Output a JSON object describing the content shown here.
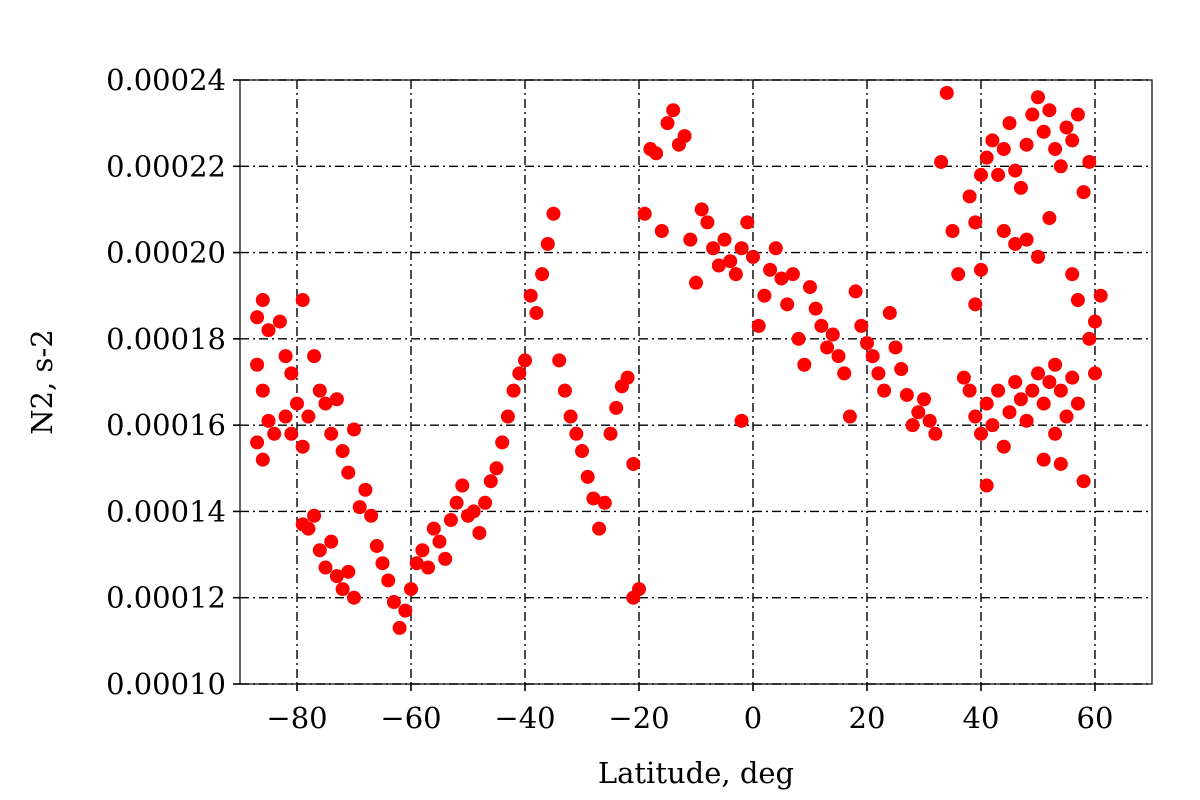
{
  "chart_data": {
    "type": "scatter",
    "title": "",
    "xlabel": "Latitude, deg",
    "ylabel": "N2, s-2",
    "xlim": [
      -90,
      70
    ],
    "ylim": [
      0.0001,
      0.00024
    ],
    "grid": true,
    "legend": "none",
    "color": "#ff0000",
    "x_ticks": [
      -80,
      -60,
      -40,
      -20,
      0,
      20,
      40,
      60
    ],
    "x_tick_labels": [
      "−80",
      "−60",
      "−40",
      "−20",
      "0",
      "20",
      "40",
      "60"
    ],
    "y_ticks": [
      0.0001,
      0.00012,
      0.00014,
      0.00016,
      0.00018,
      0.0002,
      0.00022,
      0.00024
    ],
    "y_tick_labels": [
      "0.00010",
      "0.00012",
      "0.00014",
      "0.00016",
      "0.00018",
      "0.00020",
      "0.00022",
      "0.00024"
    ],
    "series": [
      {
        "points": [
          [
            -87,
            0.000185
          ],
          [
            -86,
            0.000189
          ],
          [
            -85,
            0.000182
          ],
          [
            -87,
            0.000174
          ],
          [
            -86,
            0.000168
          ],
          [
            -85,
            0.000161
          ],
          [
            -87,
            0.000156
          ],
          [
            -86,
            0.000152
          ],
          [
            -84,
            0.000158
          ],
          [
            -83,
            0.000184
          ],
          [
            -82,
            0.000176
          ],
          [
            -81,
            0.000172
          ],
          [
            -80,
            0.000165
          ],
          [
            -82,
            0.000162
          ],
          [
            -81,
            0.000158
          ],
          [
            -79,
            0.000155
          ],
          [
            -78,
            0.000162
          ],
          [
            -77,
            0.000176
          ],
          [
            -76,
            0.000168
          ],
          [
            -75,
            0.000165
          ],
          [
            -74,
            0.000158
          ],
          [
            -73,
            0.000166
          ],
          [
            -72,
            0.000154
          ],
          [
            -71,
            0.000149
          ],
          [
            -70,
            0.000159
          ],
          [
            -79,
            0.000189
          ],
          [
            -79,
            0.000137
          ],
          [
            -78,
            0.000136
          ],
          [
            -77,
            0.000139
          ],
          [
            -76,
            0.000131
          ],
          [
            -75,
            0.000127
          ],
          [
            -74,
            0.000133
          ],
          [
            -73,
            0.000125
          ],
          [
            -72,
            0.000122
          ],
          [
            -71,
            0.000126
          ],
          [
            -70,
            0.00012
          ],
          [
            -69,
            0.000141
          ],
          [
            -68,
            0.000145
          ],
          [
            -67,
            0.000139
          ],
          [
            -66,
            0.000132
          ],
          [
            -65,
            0.000128
          ],
          [
            -64,
            0.000124
          ],
          [
            -63,
            0.000119
          ],
          [
            -62,
            0.000113
          ],
          [
            -61,
            0.000117
          ],
          [
            -60,
            0.000122
          ],
          [
            -59,
            0.000128
          ],
          [
            -58,
            0.000131
          ],
          [
            -57,
            0.000127
          ],
          [
            -56,
            0.000136
          ],
          [
            -55,
            0.000133
          ],
          [
            -54,
            0.000129
          ],
          [
            -53,
            0.000138
          ],
          [
            -52,
            0.000142
          ],
          [
            -51,
            0.000146
          ],
          [
            -50,
            0.000139
          ],
          [
            -49,
            0.00014
          ],
          [
            -48,
            0.000135
          ],
          [
            -47,
            0.000142
          ],
          [
            -46,
            0.000147
          ],
          [
            -45,
            0.00015
          ],
          [
            -44,
            0.000156
          ],
          [
            -43,
            0.000162
          ],
          [
            -42,
            0.000168
          ],
          [
            -41,
            0.000172
          ],
          [
            -40,
            0.000175
          ],
          [
            -39,
            0.00019
          ],
          [
            -38,
            0.000186
          ],
          [
            -37,
            0.000195
          ],
          [
            -36,
            0.000202
          ],
          [
            -35,
            0.000209
          ],
          [
            -34,
            0.000175
          ],
          [
            -33,
            0.000168
          ],
          [
            -32,
            0.000162
          ],
          [
            -31,
            0.000158
          ],
          [
            -30,
            0.000154
          ],
          [
            -29,
            0.000148
          ],
          [
            -28,
            0.000143
          ],
          [
            -27,
            0.000136
          ],
          [
            -26,
            0.000142
          ],
          [
            -25,
            0.000158
          ],
          [
            -24,
            0.000164
          ],
          [
            -23,
            0.000169
          ],
          [
            -22,
            0.000171
          ],
          [
            -21,
            0.000151
          ],
          [
            -20,
            0.000122
          ],
          [
            -21,
            0.00012
          ],
          [
            -19,
            0.000209
          ],
          [
            -18,
            0.000224
          ],
          [
            -17,
            0.000223
          ],
          [
            -16,
            0.000205
          ],
          [
            -15,
            0.00023
          ],
          [
            -14,
            0.000233
          ],
          [
            -13,
            0.000225
          ],
          [
            -12,
            0.000227
          ],
          [
            -11,
            0.000203
          ],
          [
            -10,
            0.000193
          ],
          [
            -9,
            0.00021
          ],
          [
            -8,
            0.000207
          ],
          [
            -7,
            0.000201
          ],
          [
            -6,
            0.000197
          ],
          [
            -5,
            0.000203
          ],
          [
            -4,
            0.000198
          ],
          [
            -3,
            0.000195
          ],
          [
            -2,
            0.000201
          ],
          [
            -2,
            0.000161
          ],
          [
            -1,
            0.000207
          ],
          [
            0,
            0.000199
          ],
          [
            1,
            0.000183
          ],
          [
            2,
            0.00019
          ],
          [
            3,
            0.000196
          ],
          [
            4,
            0.000201
          ],
          [
            5,
            0.000194
          ],
          [
            6,
            0.000188
          ],
          [
            7,
            0.000195
          ],
          [
            8,
            0.00018
          ],
          [
            9,
            0.000174
          ],
          [
            10,
            0.000192
          ],
          [
            11,
            0.000187
          ],
          [
            12,
            0.000183
          ],
          [
            13,
            0.000178
          ],
          [
            14,
            0.000181
          ],
          [
            15,
            0.000176
          ],
          [
            16,
            0.000172
          ],
          [
            17,
            0.000162
          ],
          [
            18,
            0.000191
          ],
          [
            19,
            0.000183
          ],
          [
            20,
            0.000179
          ],
          [
            21,
            0.000176
          ],
          [
            22,
            0.000172
          ],
          [
            23,
            0.000168
          ],
          [
            24,
            0.000186
          ],
          [
            25,
            0.000178
          ],
          [
            26,
            0.000173
          ],
          [
            27,
            0.000167
          ],
          [
            28,
            0.00016
          ],
          [
            29,
            0.000163
          ],
          [
            30,
            0.000166
          ],
          [
            31,
            0.000161
          ],
          [
            32,
            0.000158
          ],
          [
            33,
            0.000221
          ],
          [
            34,
            0.000237
          ],
          [
            35,
            0.000205
          ],
          [
            36,
            0.000195
          ],
          [
            37,
            0.000171
          ],
          [
            38,
            0.000168
          ],
          [
            39,
            0.000162
          ],
          [
            40,
            0.000158
          ],
          [
            41,
            0.000165
          ],
          [
            42,
            0.00016
          ],
          [
            43,
            0.000168
          ],
          [
            44,
            0.000155
          ],
          [
            45,
            0.000163
          ],
          [
            46,
            0.00017
          ],
          [
            47,
            0.000166
          ],
          [
            48,
            0.000161
          ],
          [
            49,
            0.000168
          ],
          [
            50,
            0.000172
          ],
          [
            51,
            0.000165
          ],
          [
            52,
            0.00017
          ],
          [
            53,
            0.000174
          ],
          [
            54,
            0.000168
          ],
          [
            55,
            0.000162
          ],
          [
            56,
            0.000171
          ],
          [
            57,
            0.000165
          ],
          [
            38,
            0.000213
          ],
          [
            39,
            0.000207
          ],
          [
            40,
            0.000218
          ],
          [
            41,
            0.000222
          ],
          [
            42,
            0.000226
          ],
          [
            43,
            0.000218
          ],
          [
            44,
            0.000224
          ],
          [
            45,
            0.00023
          ],
          [
            46,
            0.000219
          ],
          [
            47,
            0.000215
          ],
          [
            48,
            0.000225
          ],
          [
            49,
            0.000232
          ],
          [
            50,
            0.000236
          ],
          [
            51,
            0.000228
          ],
          [
            52,
            0.000233
          ],
          [
            53,
            0.000224
          ],
          [
            54,
            0.00022
          ],
          [
            55,
            0.000229
          ],
          [
            56,
            0.000226
          ],
          [
            57,
            0.000232
          ],
          [
            58,
            0.000214
          ],
          [
            59,
            0.000221
          ],
          [
            60,
            0.000184
          ],
          [
            61,
            0.00019
          ],
          [
            59,
            0.00018
          ],
          [
            60,
            0.000172
          ],
          [
            58,
            0.000147
          ],
          [
            48,
            0.000203
          ],
          [
            50,
            0.000199
          ],
          [
            52,
            0.000208
          ],
          [
            56,
            0.000195
          ],
          [
            57,
            0.000189
          ],
          [
            44,
            0.000205
          ],
          [
            46,
            0.000202
          ],
          [
            40,
            0.000196
          ],
          [
            39,
            0.000188
          ],
          [
            53,
            0.000158
          ],
          [
            54,
            0.000151
          ],
          [
            51,
            0.000152
          ],
          [
            41,
            0.000146
          ]
        ]
      }
    ]
  }
}
